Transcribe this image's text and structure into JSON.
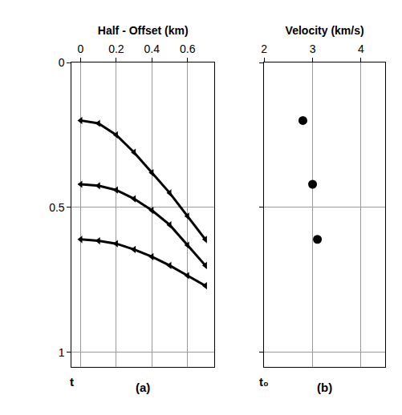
{
  "chart_data": [
    {
      "type": "line",
      "x_label": "Half - Offset (km)",
      "y_label": "t",
      "annotations": [
        "(a)"
      ],
      "x": [
        0,
        0.1,
        0.2,
        0.3,
        0.4,
        0.5,
        0.6,
        0.7
      ],
      "series": [
        {
          "color": "#000000",
          "values": [
            0.2,
            0.21,
            0.25,
            0.31,
            0.38,
            0.45,
            0.53,
            0.61
          ]
        },
        {
          "color": "#000000",
          "values": [
            0.42,
            0.425,
            0.44,
            0.47,
            0.51,
            0.56,
            0.63,
            0.7
          ]
        },
        {
          "color": "#000000",
          "values": [
            0.61,
            0.615,
            0.625,
            0.645,
            0.67,
            0.7,
            0.735,
            0.77
          ]
        }
      ],
      "marker": "triangle-left",
      "line_style": "solid",
      "xlim": [
        -0.05,
        0.75
      ],
      "xticks": [
        0,
        0.2,
        0.4,
        0.6
      ],
      "ylim": [
        0,
        1.05
      ],
      "yticks": [
        0,
        0.5,
        1
      ],
      "grid": true
    },
    {
      "type": "scatter",
      "x_label": "Velocity (km/s)",
      "y_label": "t₀",
      "annotations": [
        "(b)"
      ],
      "x": [
        2.8,
        3.0,
        3.1
      ],
      "values": [
        0.2,
        0.42,
        0.61
      ],
      "color": "#000000",
      "marker": "circle",
      "xlim": [
        2,
        4.5
      ],
      "xticks": [
        2,
        3,
        4
      ],
      "ylim": [
        0,
        1.05
      ],
      "yticks": [
        0,
        0.5,
        1
      ],
      "tick_labels": "x",
      "grid": true
    }
  ]
}
